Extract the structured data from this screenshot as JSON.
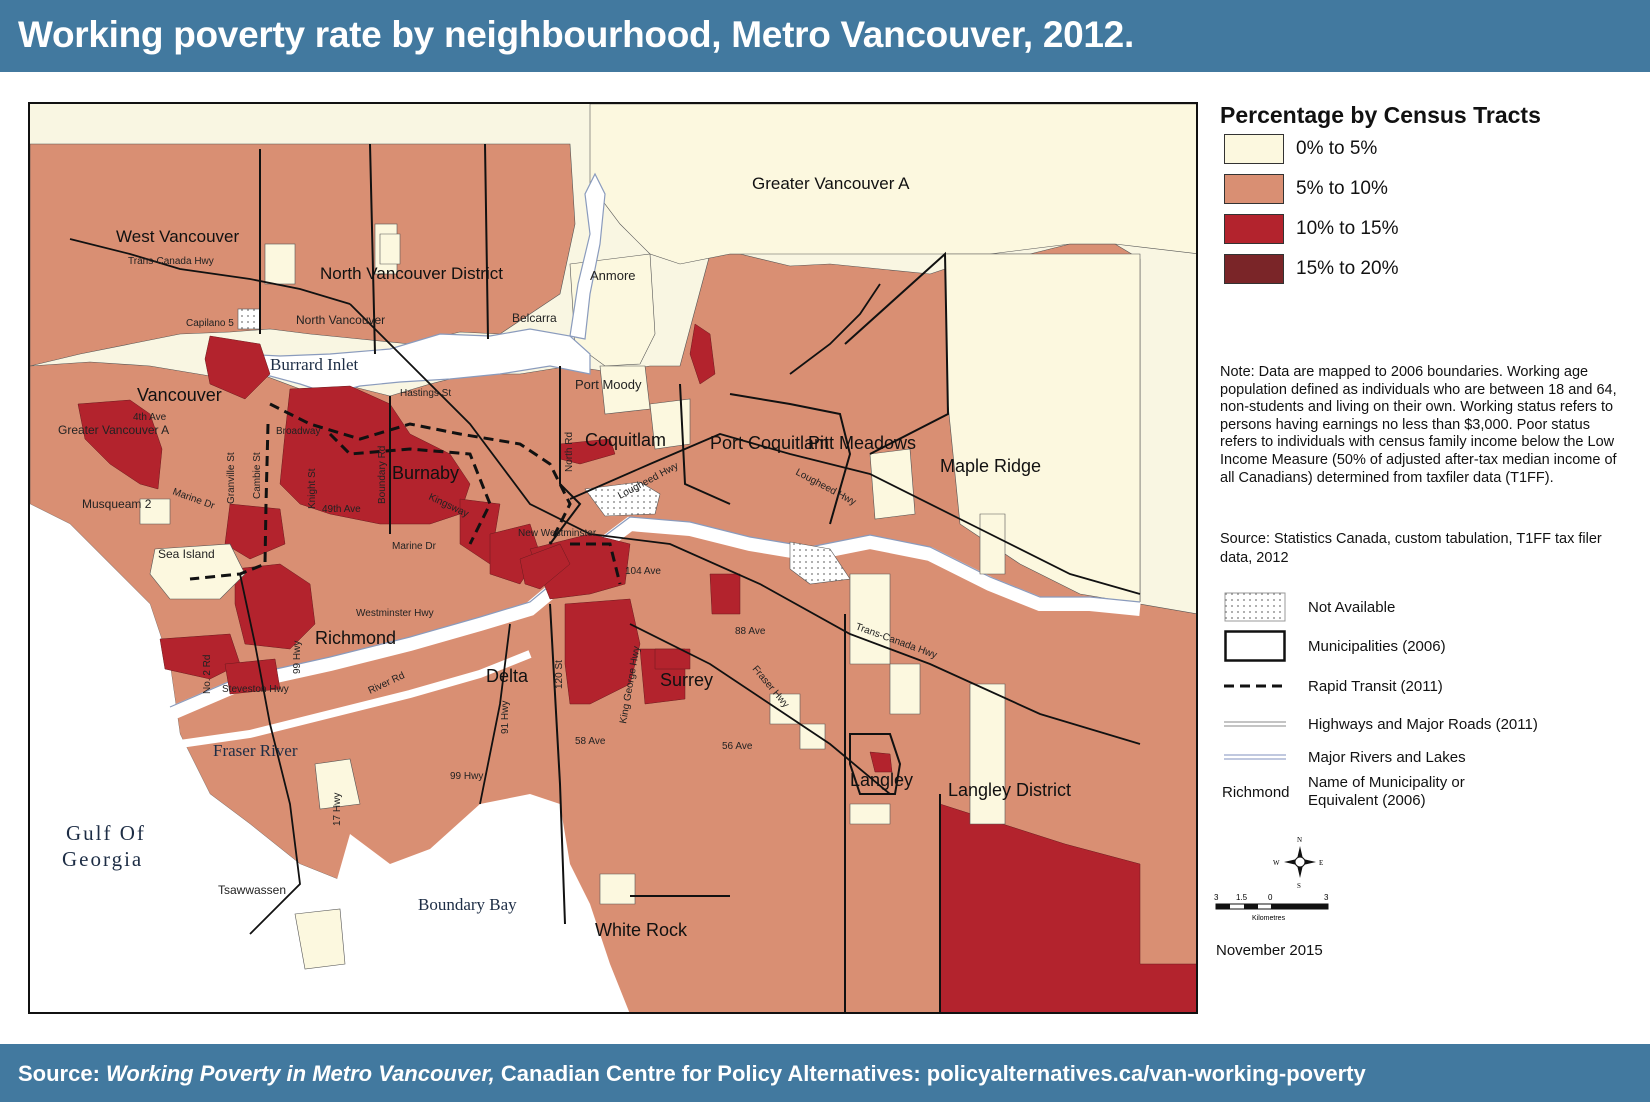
{
  "title": "Working poverty rate by neighbourhood, Metro Vancouver, 2012.",
  "footer": {
    "prefix": "Source: ",
    "publication": "Working Poverty in Metro Vancouver,",
    "rest": " Canadian Centre for Policy Alternatives: policyalternatives.ca/van-working-poverty"
  },
  "legend": {
    "title": "Percentage by Census Tracts",
    "classes": [
      {
        "label": "0% to 5%",
        "color": "#fcf8df"
      },
      {
        "label": "5% to 10%",
        "color": "#d98f73"
      },
      {
        "label": "10% to 15%",
        "color": "#b3232d"
      },
      {
        "label": "15% to 20%",
        "color": "#7a2528"
      }
    ],
    "note": "Note: Data are mapped to 2006 boundaries. Working age population defined as individuals who are between 18 and 64, non-students and living on their own. Working status refers to persons having earnings no less than $3,000. Poor status refers to individuals with census family income below the Low Income Measure (50% of adjusted after-tax median income of all Canadians) determined from taxfiler data (T1FF).",
    "source": "Source: Statistics Canada, custom tabulation, T1FF tax filer data, 2012",
    "symbols": [
      {
        "label": "Not Available",
        "icon": "dotted-box-icon"
      },
      {
        "label": "Municipalities (2006)",
        "icon": "municipality-box-icon"
      },
      {
        "label": "Rapid Transit  (2011)",
        "icon": "dashed-line-icon"
      },
      {
        "label": "Highways and Major Roads (2011)",
        "icon": "double-line-icon"
      },
      {
        "label": "Major Rivers and Lakes",
        "icon": "river-line-icon"
      },
      {
        "label": "Name of Municipality or Equivalent (2006)",
        "sample": "Richmond"
      }
    ],
    "scale": {
      "ticks": [
        "3",
        "1.5",
        "0",
        "3"
      ],
      "unit": "Kilometres"
    },
    "compass": [
      "N",
      "E",
      "S",
      "W"
    ],
    "date": "November 2015"
  },
  "map": {
    "municipalities": [
      "West Vancouver",
      "North Vancouver District",
      "North Vancouver",
      "Greater Vancouver A",
      "Anmore",
      "Belcarra",
      "Port Moody",
      "Vancouver",
      "Greater Vancouver A",
      "Musqueam 2",
      "Burnaby",
      "Coquitlam",
      "Port Coquitlam",
      "Pitt Meadows",
      "Maple Ridge",
      "New Westminster",
      "Sea Island",
      "Richmond",
      "Delta",
      "Surrey",
      "Langley",
      "Langley District",
      "Tsawwassen",
      "White Rock",
      "Capilano 5"
    ],
    "roads": [
      "Trans-Canada Hwy",
      "Hastings St",
      "4th Ave",
      "Broadway",
      "Granville St",
      "Cambie St",
      "Knight St",
      "Boundary Rd",
      "Marine Dr",
      "49th Ave",
      "Kingsway",
      "Marine Dr",
      "North Rd",
      "Lougheed Hwy",
      "Lougheed Hwy",
      "104 Ave",
      "Westminster Hwy",
      "88 Ave",
      "Trans-Canada Hwy",
      "No. 2 Rd",
      "99 Hwy",
      "Steveston Hwy",
      "River Rd",
      "91 Hwy",
      "120 St",
      "King George Hwy",
      "Fraser Hwy",
      "58 Ave",
      "56 Ave",
      "99 Hwy",
      "17 Hwy"
    ],
    "water": [
      "Burrard Inlet",
      "Fraser River",
      "Boundary Bay",
      "Gulf Of",
      "Georgia"
    ]
  }
}
